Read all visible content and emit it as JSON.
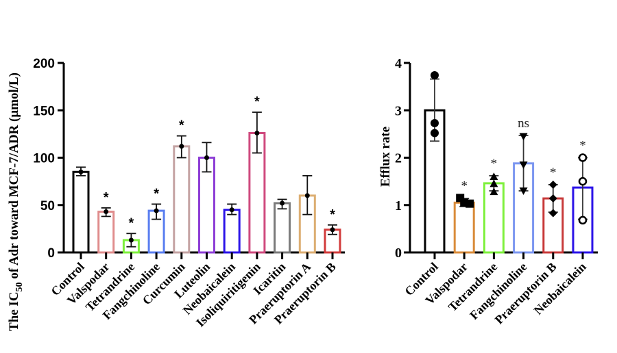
{
  "chart_data": [
    {
      "type": "bar",
      "title": "",
      "ylabel": "The IC50 of Adr toward MCF-7/ADR (μmol/L)",
      "ylabel_parts": {
        "prefix": "The IC",
        "subscript": "50",
        "suffix": " of Adr toward MCF-7/ADR (μmol/L)"
      },
      "xlabel": "",
      "ylim": [
        0,
        200
      ],
      "yticks": [
        0,
        50,
        100,
        150,
        200
      ],
      "ytick_labels": [
        "0",
        "50",
        "100",
        "150",
        "200"
      ],
      "categories": [
        "Control",
        "Valspodar",
        "Tetrandrine",
        "Fangchinoline",
        "Curcumin",
        "Luteolin",
        "Neobaicalein",
        "Isoliquiritigenin",
        "Icaritin",
        "Praeruptorin A",
        "Praeruptorin B"
      ],
      "values": [
        85,
        43,
        13,
        44,
        112,
        100,
        45,
        126,
        52,
        60,
        24
      ],
      "error_low": [
        81,
        38,
        6,
        35,
        100,
        85,
        40,
        105,
        46,
        40,
        19
      ],
      "error_high": [
        90,
        47,
        20,
        51,
        123,
        116,
        51,
        148,
        56,
        81,
        29
      ],
      "significance": [
        "",
        "*",
        "*",
        "*",
        "*",
        "",
        "",
        "*",
        "",
        "",
        "*"
      ],
      "colors": [
        "#000000",
        "#e08d8d",
        "#7ef03c",
        "#5a7ef0",
        "#c4a3a3",
        "#8e3fd6",
        "#2a12e8",
        "#cf4a7e",
        "#7a7a7a",
        "#dcae72",
        "#d23b3b"
      ],
      "grid": false,
      "legend": "none"
    },
    {
      "type": "bar",
      "title": "",
      "ylabel": "Efflux rate",
      "xlabel": "",
      "ylim": [
        0,
        4
      ],
      "yticks": [
        0,
        1,
        2,
        3,
        4
      ],
      "ytick_labels": [
        "0",
        "1",
        "2",
        "3",
        "4"
      ],
      "categories": [
        "Control",
        "Valspodar",
        "Tetrandrine",
        "Fangchinoline",
        "Praeruptorin B",
        "Neobaicalein"
      ],
      "values": [
        3.0,
        1.05,
        1.46,
        1.88,
        1.14,
        1.37
      ],
      "error_low": [
        2.35,
        0.97,
        1.3,
        1.3,
        0.85,
        0.7
      ],
      "error_high": [
        3.66,
        1.14,
        1.62,
        2.47,
        1.43,
        2.0
      ],
      "points": [
        [
          3.74,
          2.73,
          2.52
        ],
        [
          1.15,
          1.05,
          1.03
        ],
        [
          1.6,
          1.45,
          1.28
        ],
        [
          2.45,
          1.85,
          1.3
        ],
        [
          1.43,
          1.14,
          0.83
        ],
        [
          2.0,
          1.5,
          0.68
        ]
      ],
      "markers": [
        "circle",
        "square",
        "triangle-up",
        "triangle-down",
        "diamond",
        "open-circle"
      ],
      "significance": [
        "",
        "*",
        "*",
        "ns",
        "*",
        "*"
      ],
      "colors": [
        "#000000",
        "#d98b3a",
        "#7ef03c",
        "#7b96f0",
        "#c83a3a",
        "#2a12e8"
      ],
      "grid": false,
      "legend": "none"
    }
  ]
}
